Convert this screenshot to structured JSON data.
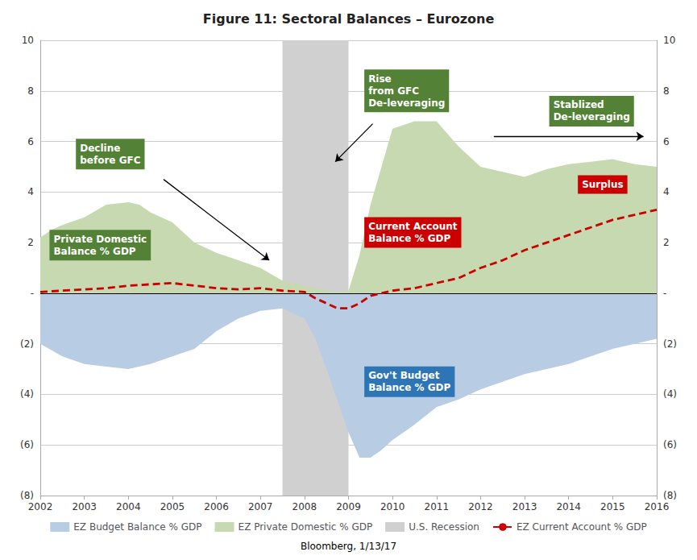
{
  "chart_data": {
    "type": "area",
    "title": "Figure 11: Sectoral Balances – Eurozone",
    "subtitle": "Bloomberg, 1/13/17",
    "xlim": [
      2002,
      2016
    ],
    "xticks": [
      2002,
      2003,
      2004,
      2005,
      2006,
      2007,
      2008,
      2009,
      2010,
      2011,
      2012,
      2013,
      2014,
      2015,
      2016
    ],
    "ylim": [
      -8,
      10
    ],
    "yticks": [
      {
        "value": -8,
        "label": "(8)"
      },
      {
        "value": -6,
        "label": "(6)"
      },
      {
        "value": -4,
        "label": "(4)"
      },
      {
        "value": -2,
        "label": "(2)"
      },
      {
        "value": 0,
        "label": "-"
      },
      2,
      4,
      6,
      8,
      10
    ],
    "y2lim": [
      -8,
      10
    ],
    "y2ticks": [
      {
        "value": -8,
        "label": "(8)"
      },
      {
        "value": -6,
        "label": "(6)"
      },
      {
        "value": -4,
        "label": "(4)"
      },
      {
        "value": -2,
        "label": "(2)"
      },
      {
        "value": 0,
        "label": "-"
      },
      2,
      4,
      6,
      8,
      10
    ],
    "grid": true,
    "legend": "bottom",
    "series": [
      {
        "name": "EZ Budget Balance % GDP",
        "type": "area",
        "color": "#b8cce4",
        "x": [
          2002,
          2002.5,
          2003,
          2003.5,
          2004,
          2004.5,
          2005,
          2005.5,
          2006,
          2006.5,
          2007,
          2007.5,
          2008,
          2008.25,
          2008.5,
          2009,
          2009.25,
          2009.5,
          2009.75,
          2010,
          2010.5,
          2011,
          2011.5,
          2012,
          2012.5,
          2013,
          2013.5,
          2014,
          2014.5,
          2015,
          2015.5,
          2016
        ],
        "values": [
          -2.0,
          -2.5,
          -2.8,
          -2.9,
          -3.0,
          -2.8,
          -2.5,
          -2.2,
          -1.5,
          -1.0,
          -0.7,
          -0.6,
          -1.0,
          -1.8,
          -3.0,
          -5.5,
          -6.5,
          -6.5,
          -6.2,
          -5.8,
          -5.2,
          -4.5,
          -4.2,
          -3.8,
          -3.5,
          -3.2,
          -3.0,
          -2.8,
          -2.5,
          -2.2,
          -2.0,
          -1.8
        ]
      },
      {
        "name": "EZ Private Domestic % GDP",
        "type": "area",
        "color": "#c6d9b0",
        "x": [
          2002,
          2002.25,
          2002.5,
          2003,
          2003.5,
          2004,
          2004.25,
          2004.5,
          2005,
          2005.5,
          2006,
          2006.5,
          2007,
          2007.3,
          2007.5,
          2007.75,
          2008,
          2008.25,
          2008.5,
          2008.75,
          2009,
          2009.25,
          2009.5,
          2010,
          2010.5,
          2011,
          2011.5,
          2012,
          2012.5,
          2013,
          2013.5,
          2014,
          2014.5,
          2015,
          2015.5,
          2016
        ],
        "values": [
          2.2,
          2.5,
          2.7,
          3.0,
          3.5,
          3.6,
          3.5,
          3.2,
          2.8,
          2.0,
          1.6,
          1.3,
          1.0,
          0.7,
          0.5,
          0.4,
          0.3,
          0.2,
          0.1,
          0.05,
          0.1,
          1.5,
          3.5,
          6.5,
          6.8,
          6.8,
          5.8,
          5.0,
          4.8,
          4.6,
          4.9,
          5.1,
          5.2,
          5.3,
          5.1,
          5.0
        ]
      },
      {
        "name": "U.S. Recession",
        "type": "span",
        "color": "#d0d0d0",
        "start": 2007.5,
        "end": 2009.0
      },
      {
        "name": "EZ Current Account % GDP",
        "type": "line",
        "color": "#cc0000",
        "line_style": "dashed",
        "x": [
          2002,
          2002.5,
          2003,
          2003.5,
          2004,
          2004.5,
          2005,
          2005.5,
          2006,
          2006.5,
          2007,
          2007.5,
          2008,
          2008.25,
          2008.5,
          2008.75,
          2009,
          2009.25,
          2009.5,
          2010,
          2010.5,
          2011,
          2011.5,
          2012,
          2012.5,
          2013,
          2013.5,
          2014,
          2014.5,
          2015,
          2015.5,
          2016
        ],
        "values": [
          0.05,
          0.1,
          0.15,
          0.2,
          0.3,
          0.35,
          0.4,
          0.3,
          0.2,
          0.15,
          0.2,
          0.1,
          0.05,
          -0.2,
          -0.4,
          -0.6,
          -0.6,
          -0.4,
          -0.1,
          0.1,
          0.2,
          0.4,
          0.6,
          1.0,
          1.3,
          1.7,
          2.0,
          2.3,
          2.6,
          2.9,
          3.1,
          3.3
        ]
      }
    ],
    "annotations": [
      {
        "text": "Private Domestic\nBalance % GDP",
        "x": 2002.2,
        "y": 1.9,
        "color": "#538135"
      },
      {
        "text": "Decline\nbefore GFC",
        "x": 2002.8,
        "y": 5.5,
        "color": "#538135"
      },
      {
        "text": "Rise\nfrom GFC\nDe-leveraging",
        "x": 2009.35,
        "y": 8.0,
        "color": "#538135"
      },
      {
        "text": "Stablized\nDe-leveraging",
        "x": 2013.55,
        "y": 7.2,
        "color": "#538135"
      },
      {
        "text": "Surplus",
        "x": 2014.2,
        "y": 4.3,
        "color": "#cc0000"
      },
      {
        "text": "Current Account\nBalance % GDP",
        "x": 2009.35,
        "y": 2.4,
        "color": "#cc0000"
      },
      {
        "text": "Gov't Budget\nBalance % GDP",
        "x": 2009.35,
        "y": -3.5,
        "color": "#2e75b6"
      }
    ],
    "arrows": [
      {
        "from": [
          2004.8,
          4.5
        ],
        "to": [
          2007.2,
          1.3
        ]
      },
      {
        "from": [
          2009.55,
          6.7
        ],
        "to": [
          2008.7,
          5.2
        ]
      },
      {
        "from": [
          2012.3,
          6.2
        ],
        "to": [
          2015.7,
          6.2
        ]
      }
    ]
  }
}
